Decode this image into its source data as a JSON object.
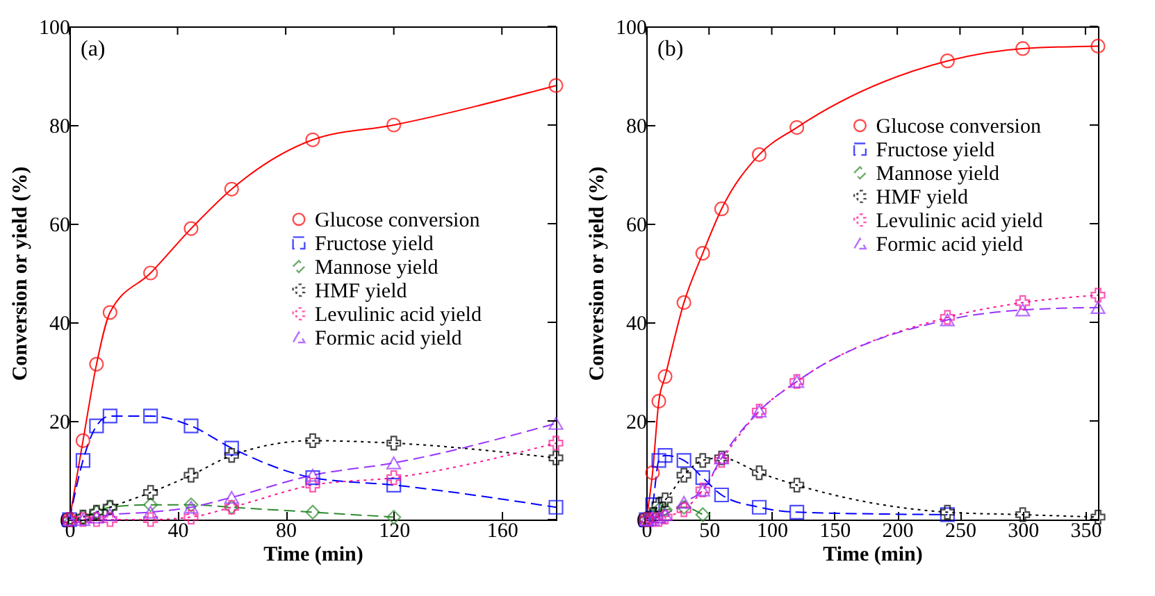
{
  "chart_data": [
    {
      "type": "line",
      "annotations": [
        "(a)"
      ],
      "xlabel": "Time (min)",
      "ylabel": "Conversion or yield (%)",
      "x": [
        0,
        5,
        10,
        15,
        30,
        45,
        60,
        90,
        120,
        180
      ],
      "xlim": [
        0,
        180
      ],
      "xticks": [
        0,
        40,
        80,
        120,
        160
      ],
      "ylim": [
        0,
        100
      ],
      "yticks": [
        0,
        20,
        40,
        60,
        80,
        100
      ],
      "legend": "right",
      "grid": false,
      "series": [
        {
          "name": "Glucose conversion",
          "color": "#ff0000",
          "marker": "circle",
          "line_style": "solid",
          "values": [
            0,
            16,
            31.5,
            42,
            50,
            59,
            67,
            77,
            80,
            88
          ]
        },
        {
          "name": "Fructose yield",
          "color": "#0000ff",
          "marker": "square",
          "line_style": "dashed",
          "values": [
            0,
            12,
            19,
            21,
            21,
            19,
            14.5,
            8.5,
            7,
            2.5
          ]
        },
        {
          "name": "Mannose yield",
          "color": "#2e8b2e",
          "marker": "diamond",
          "line_style": "dashed",
          "values": [
            0,
            0.5,
            1.5,
            2.5,
            3,
            3,
            2.5,
            1.5,
            0.5,
            null
          ]
        },
        {
          "name": "HMF yield",
          "color": "#000000",
          "marker": "cross",
          "line_style": "dotted",
          "values": [
            0,
            0.5,
            1.5,
            2.5,
            5.5,
            9,
            13,
            16,
            15.5,
            12.5
          ]
        },
        {
          "name": "Levulinic acid yield",
          "color": "#ff1493",
          "marker": "cross",
          "line_style": "dotted",
          "values": [
            0,
            0,
            0,
            0,
            0,
            0.5,
            2.5,
            7,
            8.5,
            15.5
          ]
        },
        {
          "name": "Formic acid yield",
          "color": "#9933ff",
          "marker": "triangle",
          "line_style": "dashed",
          "values": [
            0,
            0,
            0.5,
            1,
            1.5,
            2.5,
            4.5,
            9,
            11.5,
            19.5
          ]
        }
      ]
    },
    {
      "type": "line",
      "annotations": [
        "(b)"
      ],
      "xlabel": "Time (min)",
      "ylabel": "Conversion or yield (%)",
      "x": [
        0,
        5,
        10,
        15,
        30,
        45,
        60,
        90,
        120,
        240,
        300,
        360
      ],
      "xlim": [
        0,
        360
      ],
      "xticks": [
        0,
        50,
        100,
        150,
        200,
        250,
        300,
        350
      ],
      "ylim": [
        0,
        100
      ],
      "yticks": [
        0,
        20,
        40,
        60,
        80,
        100
      ],
      "legend": "right",
      "grid": false,
      "series": [
        {
          "name": "Glucose conversion",
          "color": "#ff0000",
          "marker": "circle",
          "line_style": "solid",
          "values": [
            0,
            9.5,
            24,
            29,
            44,
            54,
            63,
            74,
            79.5,
            93,
            95.5,
            96
          ]
        },
        {
          "name": "Fructose yield",
          "color": "#0000ff",
          "marker": "square",
          "line_style": "dashed",
          "values": [
            0,
            3,
            12,
            13,
            12,
            8.5,
            5,
            2.5,
            1.5,
            1,
            null,
            null
          ]
        },
        {
          "name": "Mannose yield",
          "color": "#2e8b2e",
          "marker": "diamond",
          "line_style": "dashed",
          "values": [
            0,
            1,
            2,
            2,
            2.5,
            1,
            null,
            null,
            null,
            null,
            null,
            null
          ]
        },
        {
          "name": "HMF yield",
          "color": "#000000",
          "marker": "cross",
          "line_style": "dotted",
          "values": [
            0,
            1,
            3,
            4,
            9,
            12,
            12.5,
            9.5,
            7,
            1.5,
            1,
            0.5
          ]
        },
        {
          "name": "Levulinic acid yield",
          "color": "#ff1493",
          "marker": "cross",
          "line_style": "dotted",
          "values": [
            0,
            0,
            0,
            0.5,
            2,
            6,
            12,
            22,
            28,
            41,
            44,
            45.5
          ]
        },
        {
          "name": "Formic acid yield",
          "color": "#9933ff",
          "marker": "triangle",
          "line_style": "dashed",
          "values": [
            0,
            0,
            0.5,
            1,
            3.5,
            6,
            12.5,
            22,
            28,
            40.5,
            42.5,
            43
          ]
        }
      ]
    }
  ]
}
